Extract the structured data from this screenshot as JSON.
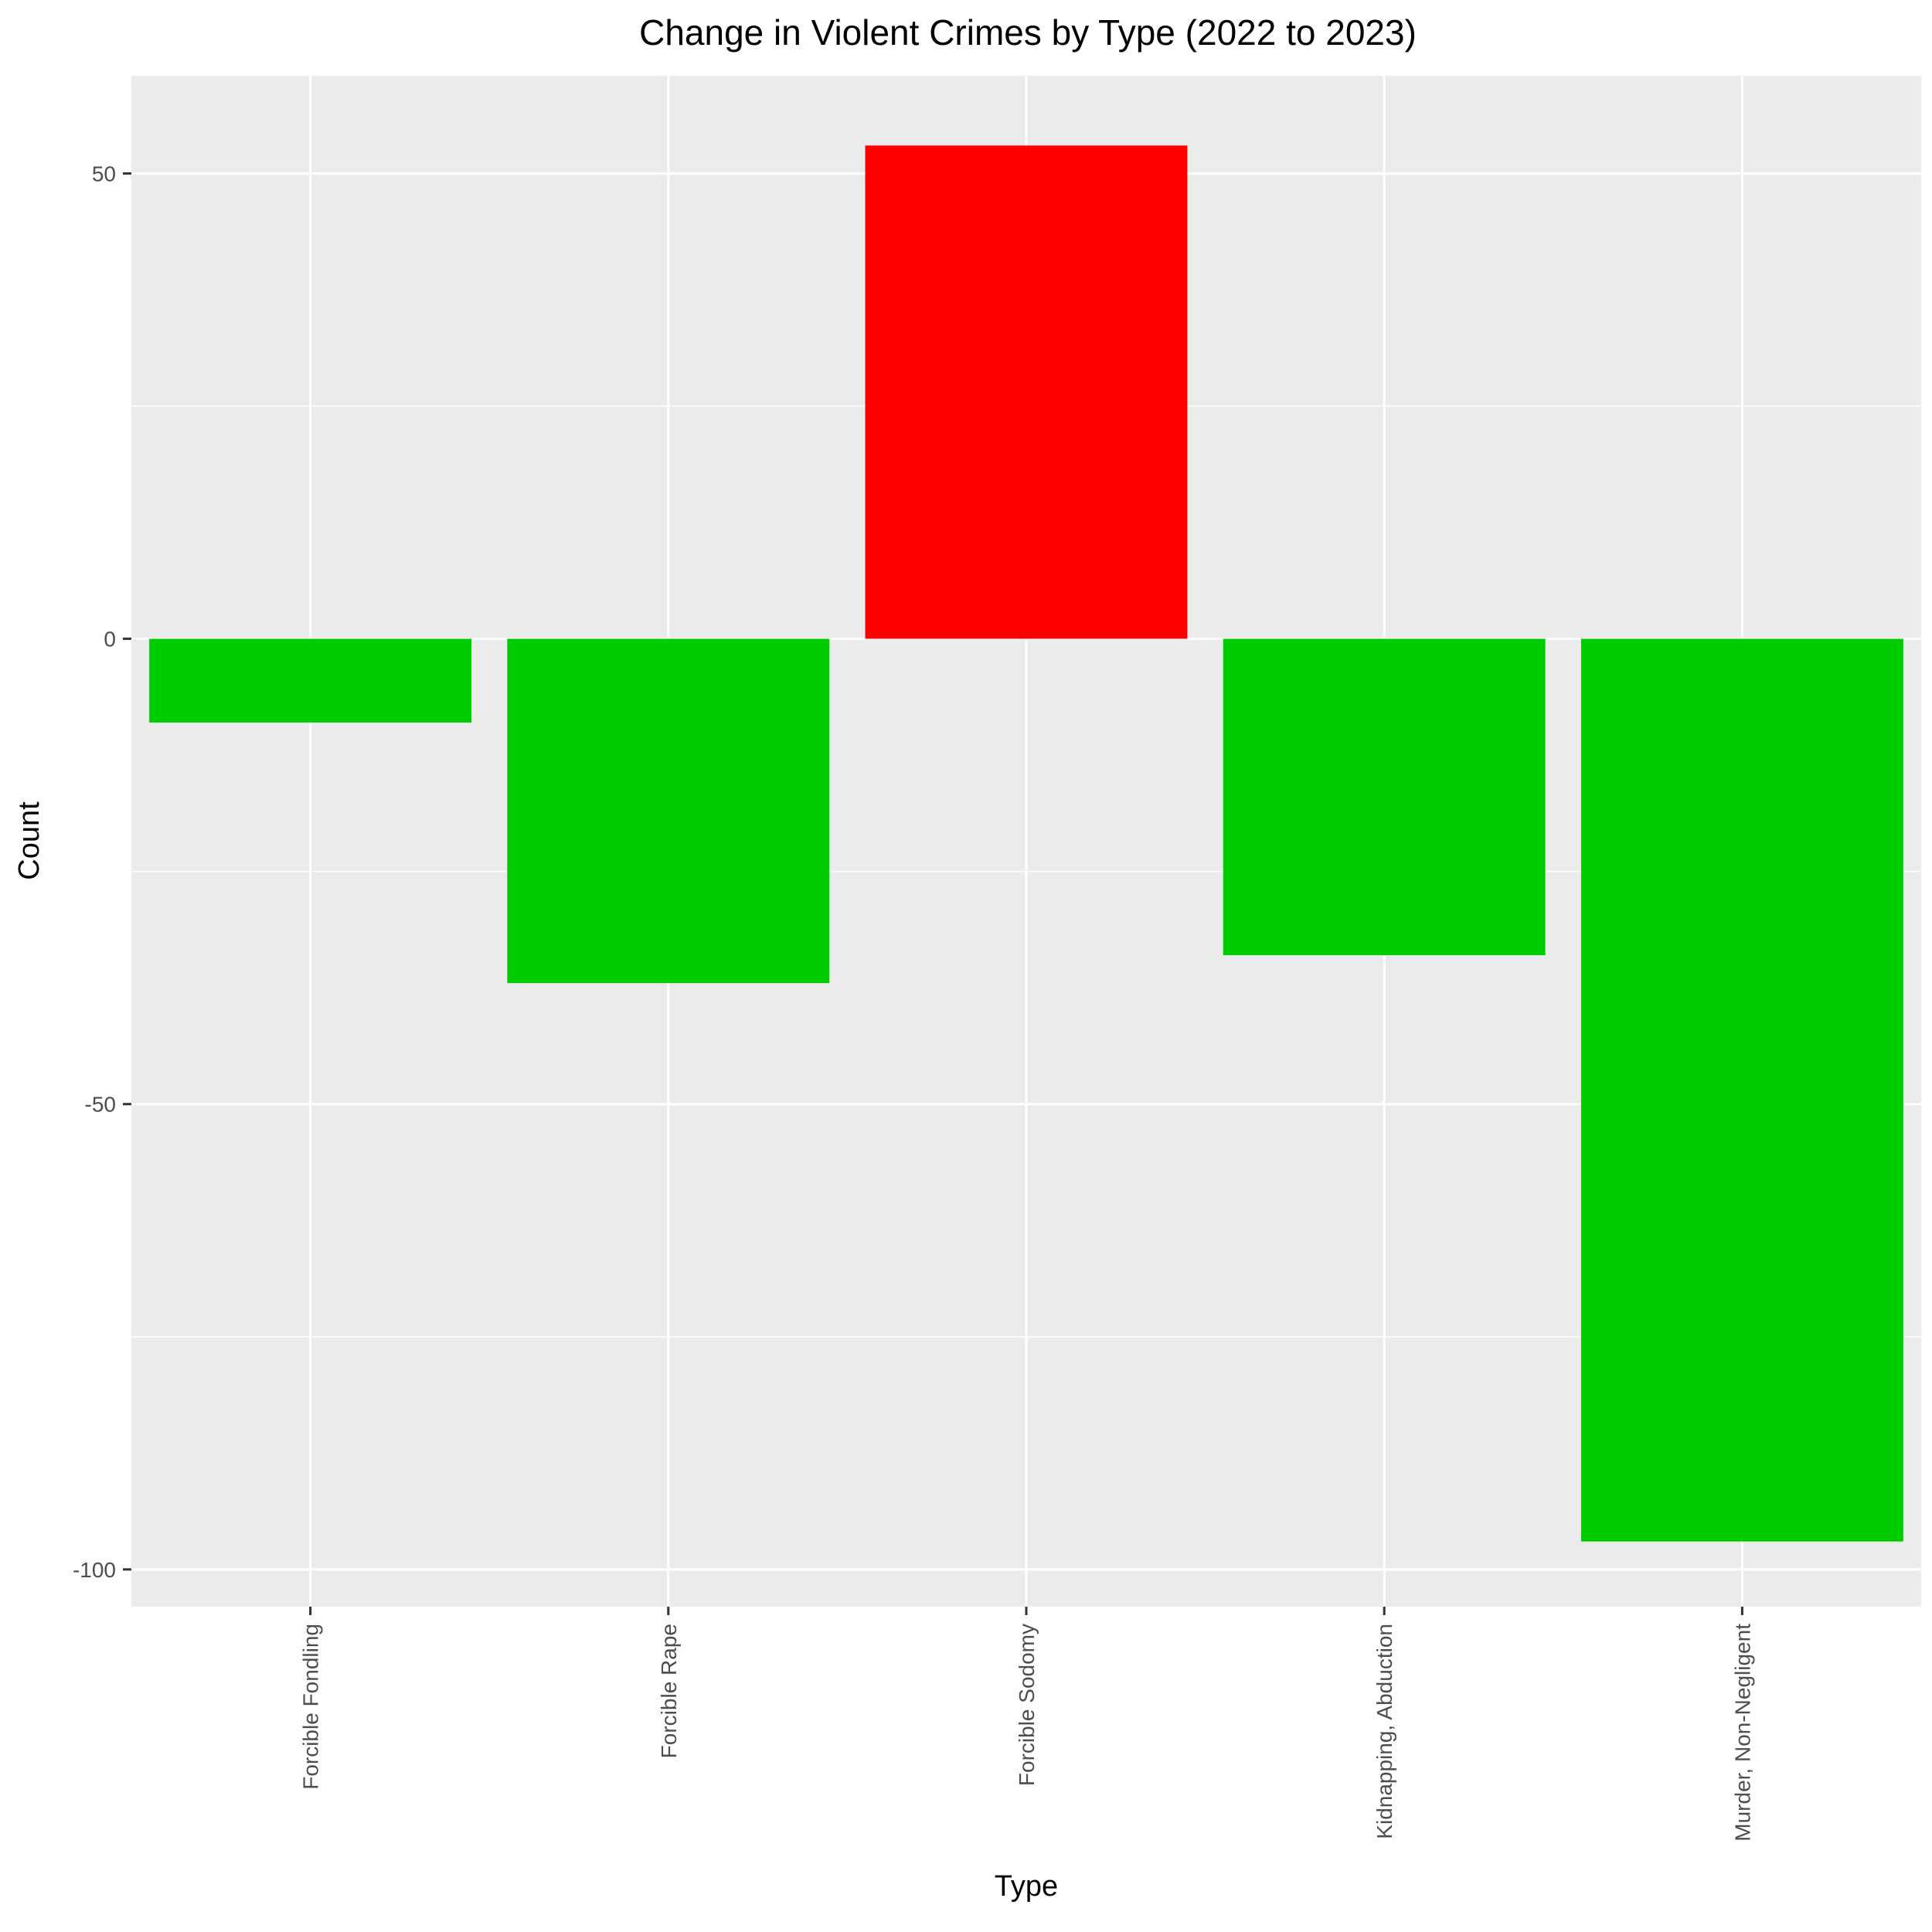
{
  "chart_data": {
    "type": "bar",
    "title": "Change in Violent Crimes by Type (2022 to 2023)",
    "xlabel": "Type",
    "ylabel": "Count",
    "categories": [
      "Forcible Fondling",
      "Forcible Rape",
      "Forcible Sodomy",
      "Kidnapping, Abduction",
      "Murder, Non-Negligent"
    ],
    "values": [
      -9,
      -37,
      53,
      -34,
      -97
    ],
    "bar_colors": [
      "#00CD00",
      "#00CD00",
      "#FF0000",
      "#00CD00",
      "#00CD00"
    ],
    "ylim": [
      -104,
      60.5
    ],
    "y_ticks": [
      -100,
      -50,
      0,
      50
    ],
    "y_tick_labels": [
      "-100",
      "-50",
      "0",
      "50"
    ],
    "y_minor_ticks": [
      -75,
      -25,
      25
    ],
    "grid": true,
    "panel_background": "#EBEBEB",
    "gridline_color": "#FFFFFF"
  }
}
